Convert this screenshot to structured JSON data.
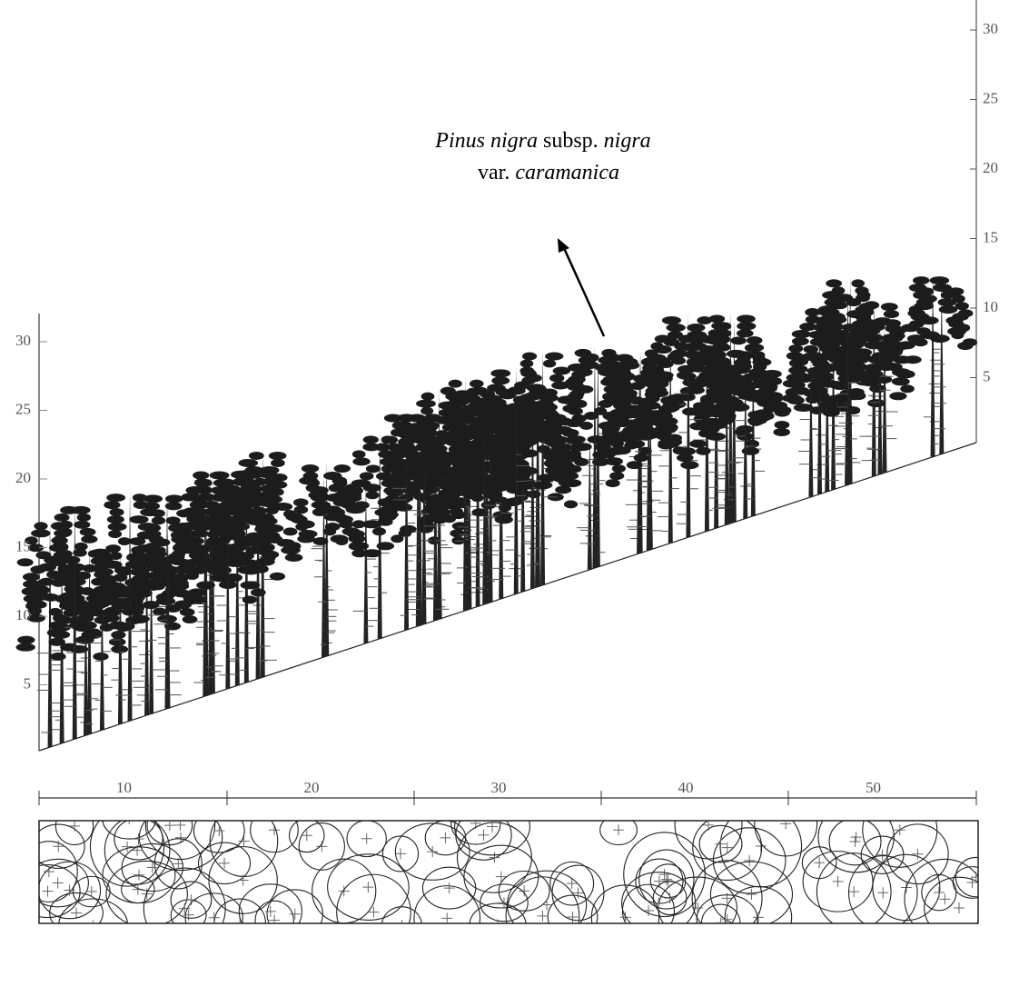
{
  "annotation": {
    "line1": [
      "Pinus nigra",
      " subsp. ",
      "nigra"
    ],
    "line2": [
      "var. ",
      "caramanica"
    ]
  },
  "left_axis": {
    "ticks": [
      5,
      10,
      15,
      20,
      25,
      30
    ]
  },
  "right_axis": {
    "ticks": [
      5,
      10,
      15,
      20,
      25,
      30
    ]
  },
  "scale": {
    "ticks": [
      10,
      20,
      30,
      40,
      50
    ]
  }
}
